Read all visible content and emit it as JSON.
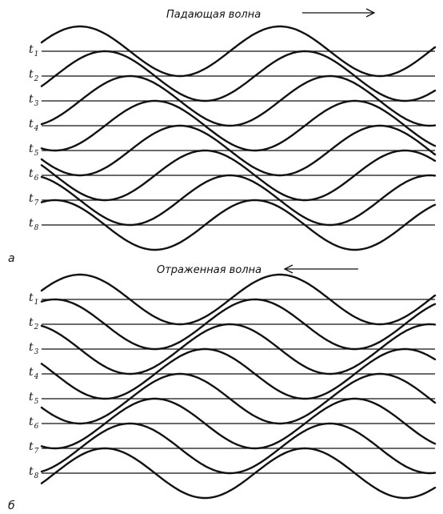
{
  "panels": [
    {
      "letter": "а",
      "title": "Падающая волна",
      "direction": "right",
      "time_labels": [
        {
          "base": "t",
          "sub": "1"
        },
        {
          "base": "t",
          "sub": "2"
        },
        {
          "base": "t",
          "sub": "3"
        },
        {
          "base": "t",
          "sub": "4"
        },
        {
          "base": "t",
          "sub": "5"
        },
        {
          "base": "t",
          "sub": "6"
        },
        {
          "base": "t",
          "sub": "7"
        },
        {
          "base": "t",
          "sub": "8"
        }
      ]
    },
    {
      "letter": "б",
      "title": "Отраженная волна",
      "direction": "left",
      "time_labels": [
        {
          "base": "t",
          "sub": "1"
        },
        {
          "base": "t",
          "sub": "2"
        },
        {
          "base": "t",
          "sub": "3"
        },
        {
          "base": "t",
          "sub": "4"
        },
        {
          "base": "t",
          "sub": "5"
        },
        {
          "base": "t",
          "sub": "6"
        },
        {
          "base": "t",
          "sub": "7"
        },
        {
          "base": "t",
          "sub": "8"
        }
      ]
    }
  ]
}
